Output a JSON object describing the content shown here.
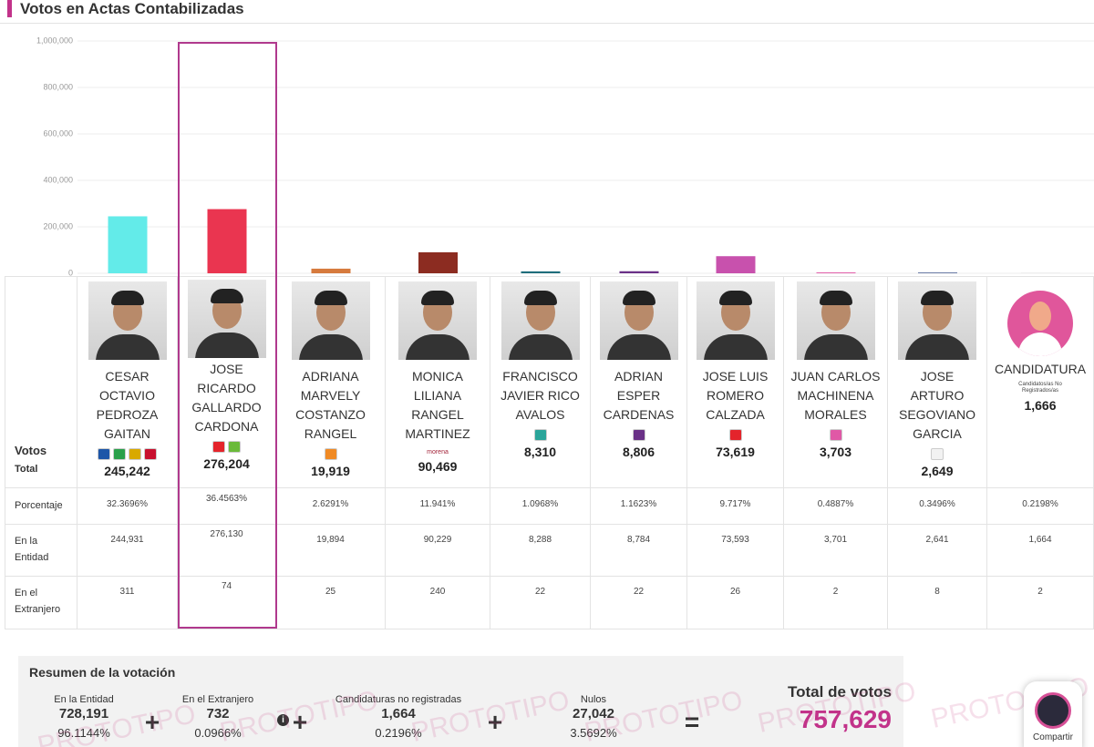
{
  "header": {
    "title": "Votos en Actas Contabilizadas"
  },
  "chart_data": {
    "type": "bar",
    "values": [
      245242,
      276204,
      19919,
      90469,
      8310,
      8806,
      73619,
      3703,
      2649,
      1666
    ],
    "value_labels": [
      "245,242",
      "276,204",
      "19,919",
      "90,469",
      "8,310",
      "8,806",
      "73,619",
      "3,703",
      "2,649",
      "1,666"
    ],
    "colors": [
      "#63ebe9",
      "#ea3550",
      "#d67a3d",
      "#8c2c21",
      "#1f6e7c",
      "#6a3187",
      "#c851ad",
      "#e058a6",
      "#233c7c",
      "#dddddd"
    ],
    "ylim": [
      0,
      1000000
    ],
    "yticks": [
      0,
      {
        "value": 200000,
        "label": "200,000"
      },
      {
        "value": 400000,
        "label": "400,000"
      },
      {
        "value": 600000,
        "label": "600,000"
      },
      {
        "value": 800000,
        "label": "800,000"
      },
      {
        "value": 1000000,
        "label": "1,000,000"
      }
    ],
    "grid": true
  },
  "table": {
    "row_labels": {
      "votos": "Votos",
      "total": "Total",
      "porcentaje": "Porcentaje",
      "entidad": "En la Entidad",
      "extranjero": "En el Extranjero"
    },
    "columns": [
      {
        "name": "CESAR OCTAVIO PEDROZA GAITAN",
        "porcentaje": "32.3696%",
        "entidad": "244,931",
        "extranjero": "311"
      },
      {
        "name": "JOSE RICARDO GALLARDO CARDONA",
        "porcentaje": "36.4563%",
        "entidad": "276,130",
        "extranjero": "74"
      },
      {
        "name": "ADRIANA MARVELY COSTANZO RANGEL",
        "porcentaje": "2.6291%",
        "entidad": "19,894",
        "extranjero": "25"
      },
      {
        "name": "MONICA LILIANA RANGEL MARTINEZ",
        "party_text": "morena",
        "porcentaje": "11.941%",
        "entidad": "90,229",
        "extranjero": "240"
      },
      {
        "name": "FRANCISCO JAVIER RICO AVALOS",
        "porcentaje": "1.0968%",
        "entidad": "8,288",
        "extranjero": "22"
      },
      {
        "name": "ADRIAN ESPER CARDENAS",
        "porcentaje": "1.1623%",
        "entidad": "8,784",
        "extranjero": "22"
      },
      {
        "name": "JOSE LUIS ROMERO CALZADA",
        "porcentaje": "9.717%",
        "entidad": "73,593",
        "extranjero": "26"
      },
      {
        "name": "JUAN CARLOS MACHINENA MORALES",
        "porcentaje": "0.4887%",
        "entidad": "3,701",
        "extranjero": "2"
      },
      {
        "name": "JOSE ARTURO SEGOVIANO GARCIA",
        "porcentaje": "0.3496%",
        "entidad": "2,641",
        "extranjero": "8"
      },
      {
        "name": "CANDIDATURA",
        "party_text": "Candidatos/as No Registrados/as",
        "porcentaje": "0.2198%",
        "entidad": "1,664",
        "extranjero": "2"
      }
    ]
  },
  "summary": {
    "title": "Resumen de la votación",
    "items": [
      {
        "label": "En la Entidad",
        "value": "728,191",
        "percent": "96.1144%"
      },
      {
        "label": "En el Extranjero",
        "value": "732",
        "percent": "0.0966%"
      },
      {
        "label": "Candidaturas no registradas",
        "value": "1,664",
        "percent": "0.2196%"
      },
      {
        "label": "Nulos",
        "value": "27,042",
        "percent": "3.5692%"
      }
    ],
    "total_label": "Total de votos",
    "total_value": "757,629"
  },
  "watermark": "PROTOTIPO",
  "share_button": "Compartir"
}
